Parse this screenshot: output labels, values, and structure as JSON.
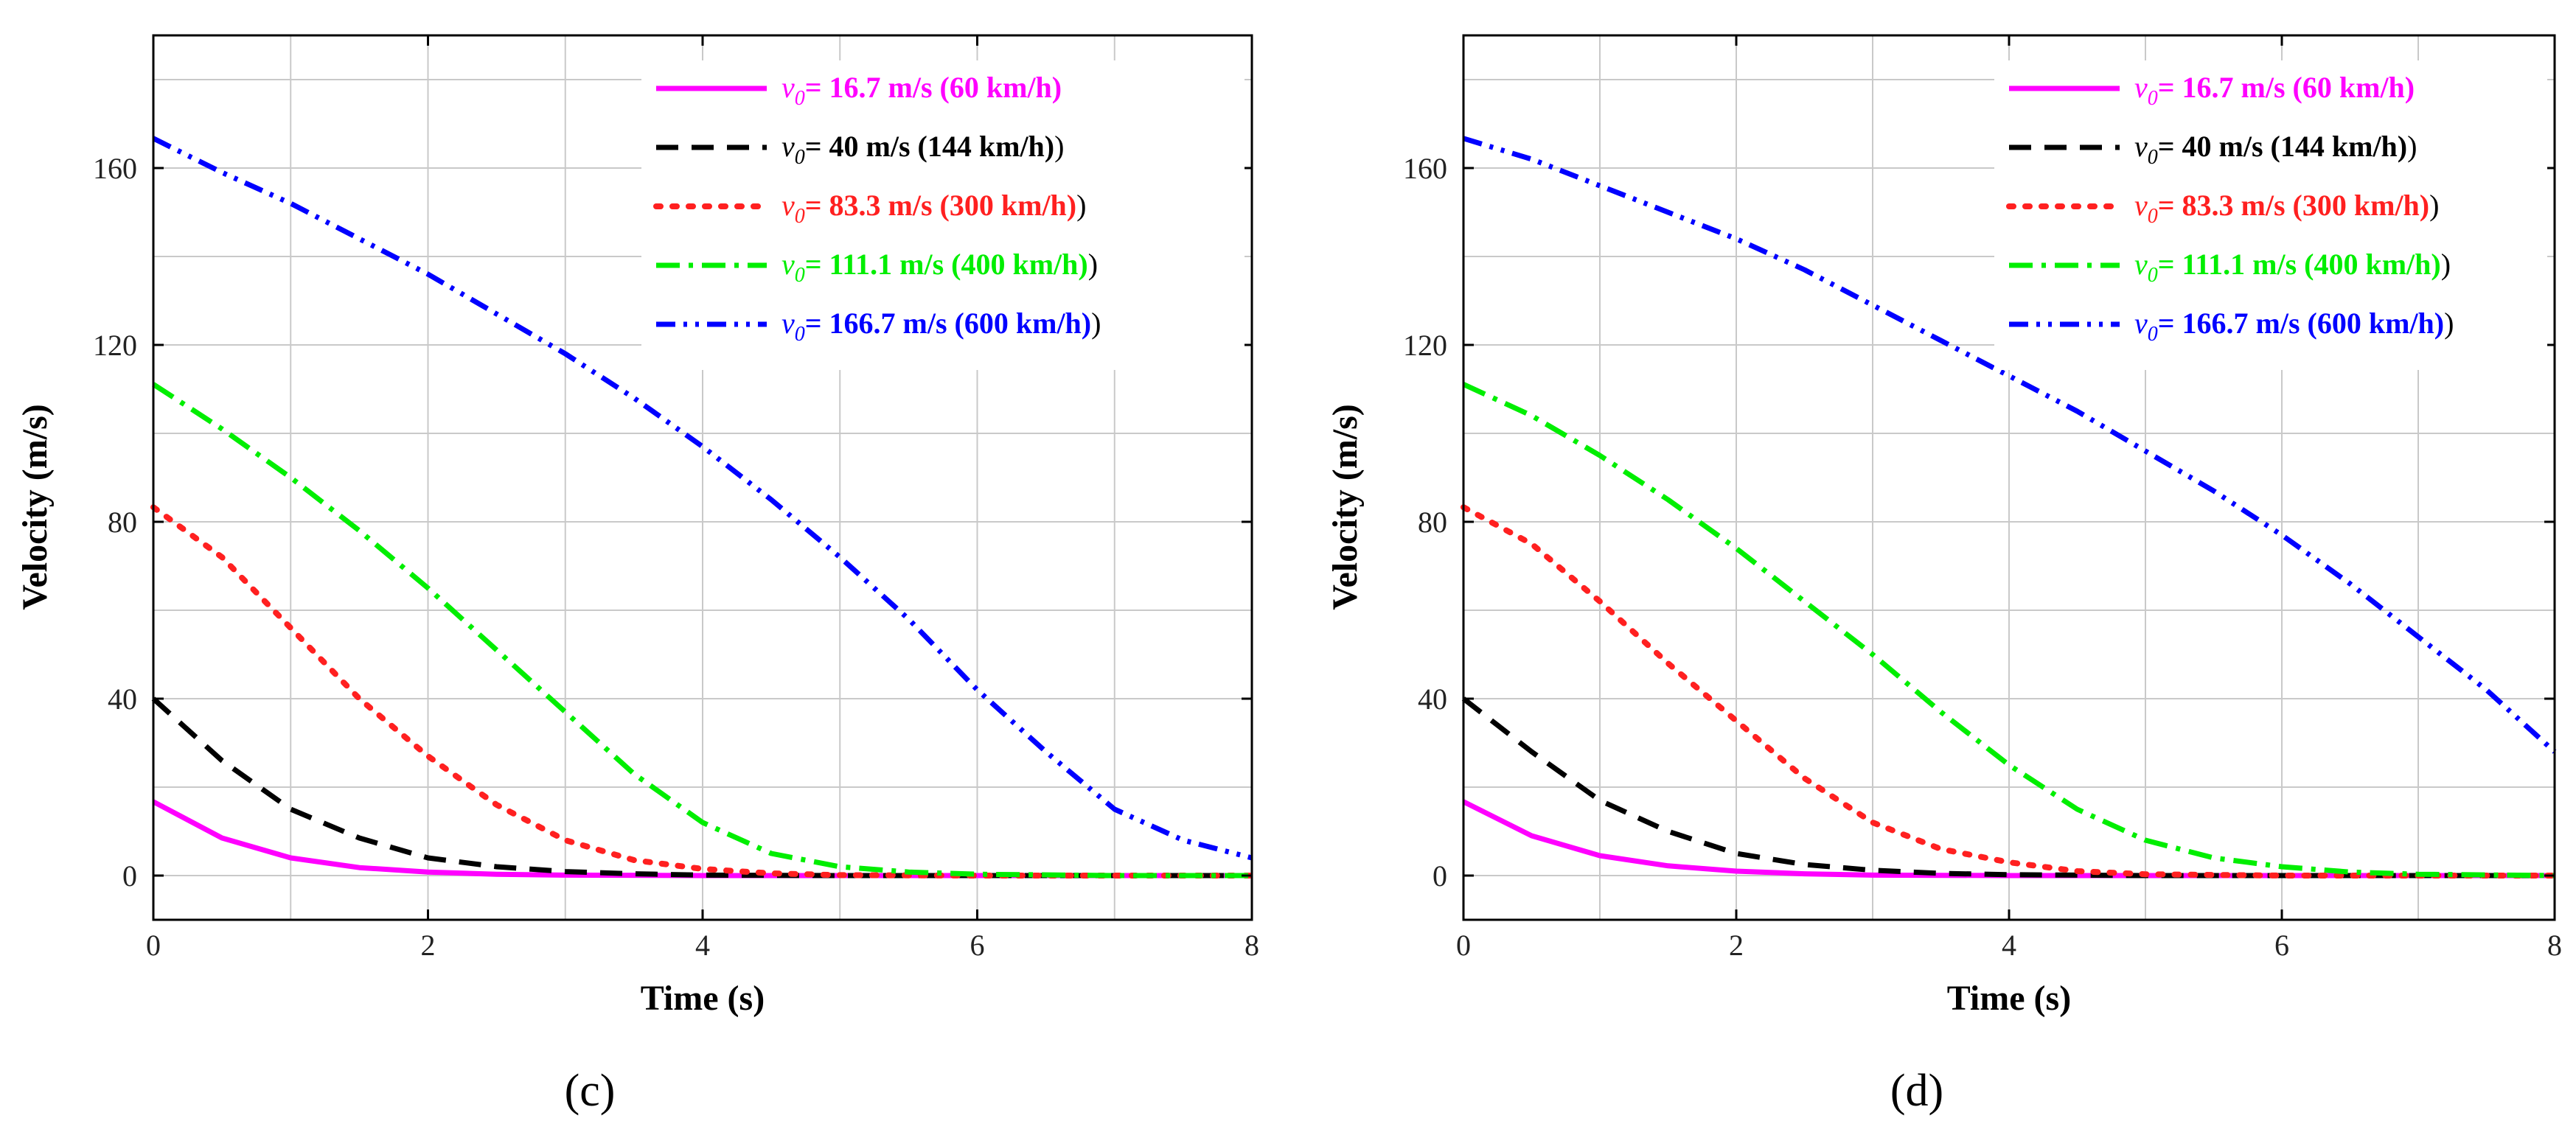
{
  "chart_data": [
    {
      "type": "line",
      "panel": "c",
      "xlabel": "Time (s)",
      "ylabel": "Velocity (m/s)",
      "xlim": [
        0,
        8
      ],
      "ylim": [
        -10,
        190
      ],
      "xticks": [
        0,
        2,
        4,
        6,
        8
      ],
      "yticks": [
        0,
        40,
        80,
        120,
        160
      ],
      "grid": true,
      "legend_position": "top-right",
      "series": [
        {
          "name": "v0=16.7 m/s (60 km/h)",
          "legend_label": "v0= 16.7 m/s (60 km/h)",
          "legend_var": "v",
          "legend_sub": "0",
          "legend_rest": "= 16.7 m/s (60 km/h)",
          "legend_trail": "",
          "color": "#ff00ff",
          "style": "solid",
          "x": [
            0,
            0.5,
            1,
            1.5,
            2,
            2.5,
            3,
            4,
            5,
            6,
            7,
            8
          ],
          "y": [
            16.7,
            8.5,
            4.0,
            1.8,
            0.8,
            0.3,
            0.1,
            0,
            0,
            0,
            0,
            0
          ]
        },
        {
          "name": "v0=40 m/s (144 km/h)",
          "legend_label": "v0= 40 m/s (144 km/h))",
          "legend_var": "v",
          "legend_sub": "0",
          "legend_rest": "= 40 m/s (144 km/h)",
          "legend_trail": ")",
          "color": "#000000",
          "style": "dash",
          "x": [
            0,
            0.5,
            1,
            1.5,
            2,
            2.5,
            3,
            3.5,
            4,
            5,
            6,
            7,
            8
          ],
          "y": [
            40,
            26,
            15,
            8.5,
            4,
            2,
            0.9,
            0.4,
            0.1,
            0,
            0,
            0,
            0
          ]
        },
        {
          "name": "v0=83.3 m/s (300 km/h)",
          "legend_label": "v0= 83.3 m/s (300 km/h))",
          "legend_var": "v",
          "legend_sub": "0",
          "legend_rest": "= 83.3 m/s (300 km/h)",
          "legend_trail": ")",
          "color": "#ff2020",
          "style": "dot",
          "x": [
            0,
            0.5,
            1,
            1.5,
            2,
            2.5,
            3,
            3.5,
            4,
            4.5,
            5,
            6,
            7,
            8
          ],
          "y": [
            83.3,
            72,
            56,
            40,
            27,
            16,
            8,
            3.5,
            1.5,
            0.5,
            0.1,
            0,
            0,
            0
          ]
        },
        {
          "name": "v0=111.1 m/s (400 km/h)",
          "legend_label": "v0= 111.1 m/s (400 km/h))",
          "legend_var": "v",
          "legend_sub": "0",
          "legend_rest": "= 111.1 m/s (400 km/h)",
          "legend_trail": ")",
          "color": "#00ee00",
          "style": "dashdot",
          "x": [
            0,
            0.5,
            1,
            1.5,
            2,
            2.5,
            3,
            3.5,
            4,
            4.5,
            5,
            5.5,
            6,
            7,
            8
          ],
          "y": [
            111.1,
            101,
            90,
            78,
            65,
            51,
            37,
            23,
            12,
            5,
            2,
            0.8,
            0.3,
            0,
            0
          ]
        },
        {
          "name": "v0=166.7 m/s (600 km/h)",
          "legend_label": "v0= 166.7 m/s (600 km/h))",
          "legend_var": "v",
          "legend_sub": "0",
          "legend_rest": "= 166.7 m/s (600 km/h)",
          "legend_trail": ")",
          "color": "#0000ff",
          "style": "dashdotdot",
          "x": [
            0,
            0.5,
            1,
            1.5,
            2,
            2.5,
            3,
            3.5,
            4,
            4.5,
            5,
            5.5,
            6,
            6.5,
            7,
            7.5,
            8
          ],
          "y": [
            166.7,
            159,
            152,
            144,
            136,
            127,
            118,
            108,
            97,
            85,
            72,
            58,
            42,
            28,
            15,
            8,
            4
          ]
        }
      ]
    },
    {
      "type": "line",
      "panel": "d",
      "xlabel": "Time (s)",
      "ylabel": "Velocity (m/s)",
      "xlim": [
        0,
        8
      ],
      "ylim": [
        -10,
        190
      ],
      "xticks": [
        0,
        2,
        4,
        6,
        8
      ],
      "yticks": [
        0,
        40,
        80,
        120,
        160
      ],
      "grid": true,
      "legend_position": "top-right",
      "series": [
        {
          "name": "v0=16.7 m/s (60 km/h)",
          "legend_label": "v0= 16.7 m/s (60 km/h)",
          "legend_var": "v",
          "legend_sub": "0",
          "legend_rest": "= 16.7 m/s (60 km/h)",
          "legend_trail": "",
          "color": "#ff00ff",
          "style": "solid",
          "x": [
            0,
            0.5,
            1,
            1.5,
            2,
            2.5,
            3,
            4,
            5,
            6,
            7,
            8
          ],
          "y": [
            16.7,
            9,
            4.5,
            2.2,
            1,
            0.4,
            0.1,
            0,
            0,
            0,
            0,
            0
          ]
        },
        {
          "name": "v0=40 m/s (144 km/h)",
          "legend_label": "v0= 40 m/s (144 km/h))",
          "legend_var": "v",
          "legend_sub": "0",
          "legend_rest": "= 40 m/s (144 km/h)",
          "legend_trail": ")",
          "color": "#000000",
          "style": "dash",
          "x": [
            0,
            0.5,
            1,
            1.5,
            2,
            2.5,
            3,
            3.5,
            4,
            5,
            6,
            7,
            8
          ],
          "y": [
            40,
            28,
            17,
            10,
            5,
            2.5,
            1.2,
            0.5,
            0.2,
            0,
            0,
            0,
            0
          ]
        },
        {
          "name": "v0=83.3 m/s (300 km/h)",
          "legend_label": "v0= 83.3 m/s (300 km/h))",
          "legend_var": "v",
          "legend_sub": "0",
          "legend_rest": "= 83.3 m/s (300 km/h)",
          "legend_trail": ")",
          "color": "#ff2020",
          "style": "dot",
          "x": [
            0,
            0.5,
            1,
            1.5,
            2,
            2.5,
            3,
            3.5,
            4,
            4.5,
            5,
            6,
            7,
            8
          ],
          "y": [
            83.3,
            75,
            62,
            48,
            35,
            22,
            12,
            6,
            3,
            1,
            0.3,
            0,
            0,
            0
          ]
        },
        {
          "name": "v0=111.1 m/s (400 km/h)",
          "legend_label": "v0= 111.1 m/s (400 km/h))",
          "legend_var": "v",
          "legend_sub": "0",
          "legend_rest": "= 111.1 m/s (400 km/h)",
          "legend_trail": ")",
          "color": "#00ee00",
          "style": "dashdot",
          "x": [
            0,
            0.5,
            1,
            1.5,
            2,
            2.5,
            3,
            3.5,
            4,
            4.5,
            5,
            5.5,
            6,
            6.5,
            7,
            8
          ],
          "y": [
            111.1,
            104,
            95,
            85,
            74,
            62,
            50,
            37,
            25,
            15,
            8,
            4,
            2,
            0.8,
            0.3,
            0
          ]
        },
        {
          "name": "v0=166.7 m/s (600 km/h)",
          "legend_label": "v0= 166.7 m/s (600 km/h))",
          "legend_var": "v",
          "legend_sub": "0",
          "legend_rest": "= 166.7 m/s (600 km/h)",
          "legend_trail": ")",
          "color": "#0000ff",
          "style": "dashdotdot",
          "x": [
            0,
            0.5,
            1,
            1.5,
            2,
            2.5,
            3,
            3.5,
            4,
            4.5,
            5,
            5.5,
            6,
            6.5,
            7,
            7.5,
            8
          ],
          "y": [
            166.7,
            162,
            156,
            150,
            144,
            137,
            129,
            121,
            113,
            105,
            96,
            87,
            77,
            66,
            54,
            42,
            28
          ]
        }
      ]
    }
  ],
  "panel_labels": [
    "(c)",
    "(d)"
  ]
}
